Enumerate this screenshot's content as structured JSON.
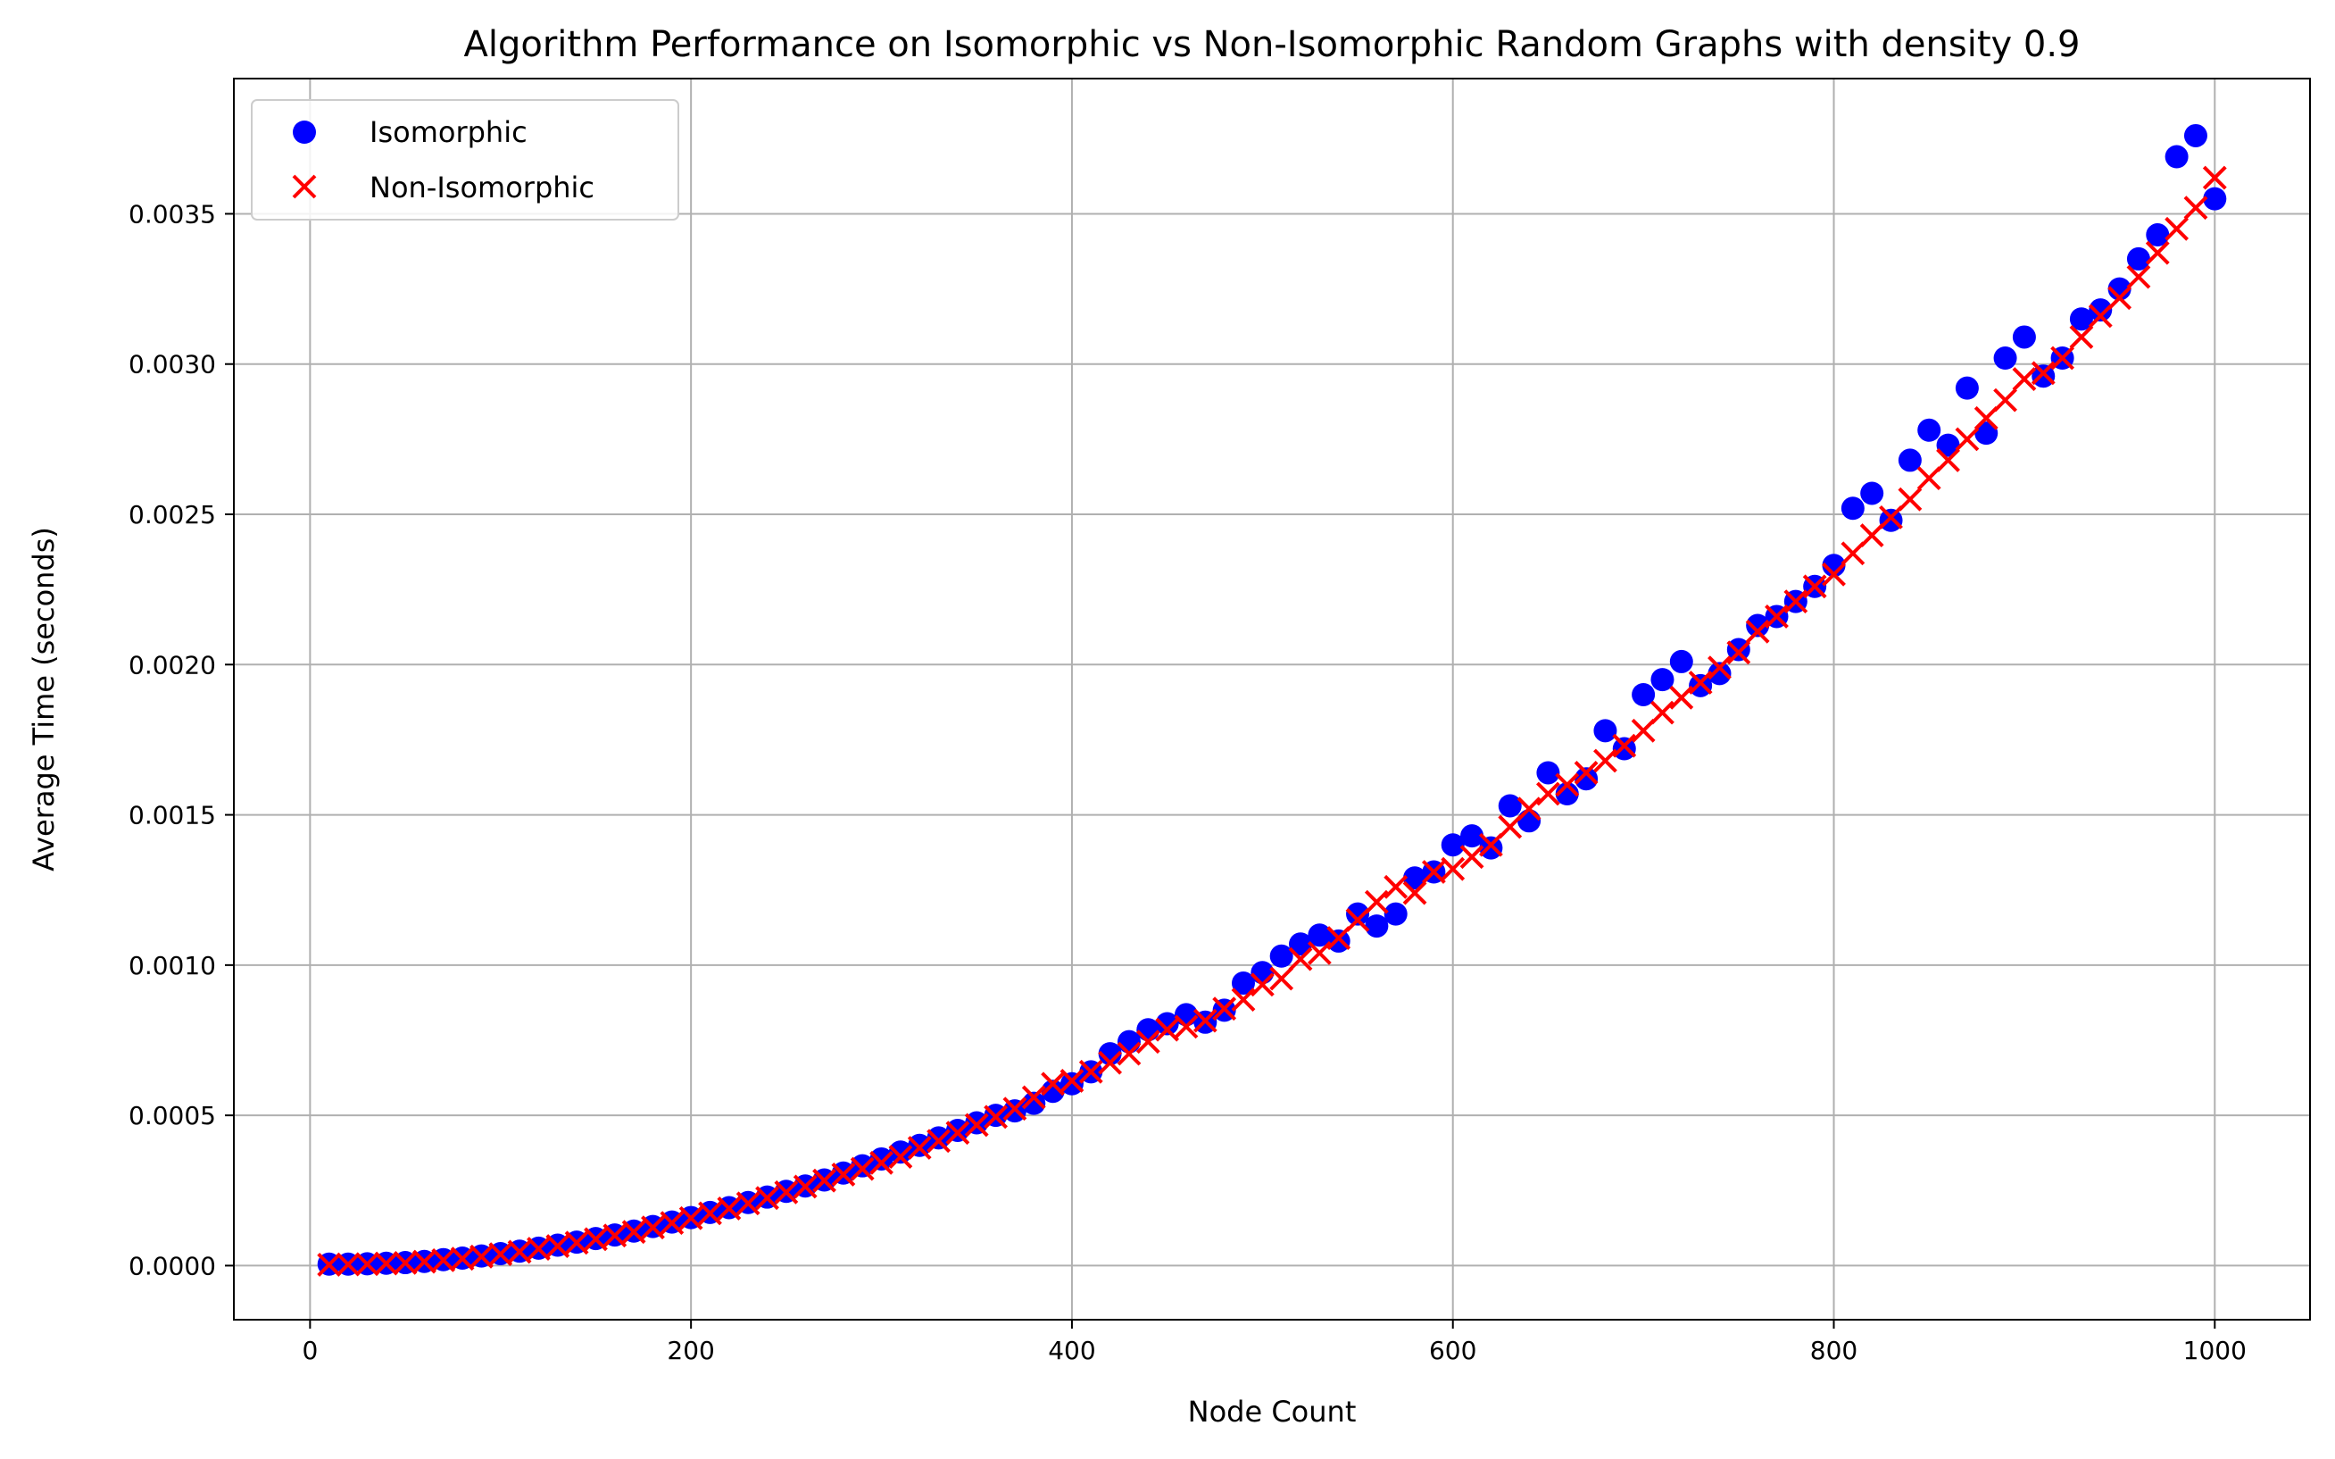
{
  "chart_data": {
    "type": "scatter",
    "title": "Algorithm Performance on Isomorphic vs Non-Isomorphic Random Graphs with density 0.9",
    "xlabel": "Node Count",
    "ylabel": "Average Time (seconds)",
    "xlim": [
      -40,
      1050
    ],
    "ylim": [
      -0.00018,
      0.00395
    ],
    "x_ticks": [
      0,
      200,
      400,
      600,
      800,
      1000
    ],
    "x_tick_labels": [
      "0",
      "200",
      "400",
      "600",
      "800",
      "1000"
    ],
    "y_ticks": [
      0,
      0.0005,
      0.001,
      0.0015,
      0.002,
      0.0025,
      0.003,
      0.0035
    ],
    "y_tick_labels": [
      "0.0000",
      "0.0005",
      "0.0010",
      "0.0015",
      "0.0020",
      "0.0025",
      "0.0030",
      "0.0035"
    ],
    "grid": true,
    "legend_position": "top-left",
    "x": [
      10,
      20,
      30,
      40,
      50,
      60,
      70,
      80,
      90,
      100,
      110,
      120,
      130,
      140,
      150,
      160,
      170,
      180,
      190,
      200,
      210,
      220,
      230,
      240,
      250,
      260,
      270,
      280,
      290,
      300,
      310,
      320,
      330,
      340,
      350,
      360,
      370,
      380,
      390,
      400,
      410,
      420,
      430,
      440,
      450,
      460,
      470,
      480,
      490,
      500,
      510,
      520,
      530,
      540,
      550,
      560,
      570,
      580,
      590,
      600,
      610,
      620,
      630,
      640,
      650,
      660,
      670,
      680,
      690,
      700,
      710,
      720,
      730,
      740,
      750,
      760,
      770,
      780,
      790,
      800,
      810,
      820,
      830,
      840,
      850,
      860,
      870,
      880,
      890,
      900,
      910,
      920,
      930,
      940,
      950,
      960,
      970,
      980,
      990,
      1000
    ],
    "series": [
      {
        "name": "Isomorphic",
        "marker": "circle",
        "color": "#0000ff",
        "values": [
          5e-06,
          5e-06,
          6e-06,
          8e-06,
          1e-05,
          1.4e-05,
          2e-05,
          2.5e-05,
          3.2e-05,
          4e-05,
          4.8e-05,
          5.8e-05,
          6.8e-05,
          7.8e-05,
          9e-05,
          0.000102,
          0.000115,
          0.00013,
          0.000145,
          0.00016,
          0.000177,
          0.000193,
          0.00021,
          0.000228,
          0.000247,
          0.000265,
          0.000285,
          0.000308,
          0.000332,
          0.000355,
          0.000378,
          0.0004,
          0.000425,
          0.00045,
          0.000475,
          0.0005,
          0.000515,
          0.00054,
          0.00058,
          0.000605,
          0.000645,
          0.000705,
          0.000745,
          0.000785,
          0.000805,
          0.000835,
          0.00081,
          0.00085,
          0.00094,
          0.000975,
          0.00103,
          0.00107,
          0.0011,
          0.00108,
          0.00117,
          0.00113,
          0.00117,
          0.00129,
          0.00131,
          0.0014,
          0.00143,
          0.00139,
          0.00153,
          0.00148,
          0.00164,
          0.00157,
          0.00162,
          0.00178,
          0.00172,
          0.0019,
          0.00195,
          0.00201,
          0.00193,
          0.00197,
          0.00205,
          0.00213,
          0.00216,
          0.00221,
          0.00226,
          0.00233,
          0.00252,
          0.00257,
          0.00248,
          0.00268,
          0.00278,
          0.00273,
          0.00292,
          0.00277,
          0.00302,
          0.00309,
          0.00296,
          0.00302,
          0.00315,
          0.00318,
          0.00325,
          0.00335,
          0.00343,
          0.00369,
          0.00376,
          0.00355
        ]
      },
      {
        "name": "Non-Isomorphic",
        "marker": "x",
        "color": "#ff0000",
        "values": [
          3e-06,
          4e-06,
          5e-06,
          7e-06,
          9e-06,
          1.3e-05,
          1.8e-05,
          2.3e-05,
          3e-05,
          3.8e-05,
          4.6e-05,
          5.6e-05,
          6.5e-05,
          7.6e-05,
          8.8e-05,
          0.0001,
          0.000112,
          0.000127,
          0.000142,
          0.000158,
          0.000174,
          0.00019,
          0.000207,
          0.000225,
          0.000244,
          0.000263,
          0.000283,
          0.000303,
          0.000322,
          0.000342,
          0.000362,
          0.000392,
          0.000415,
          0.000442,
          0.000468,
          0.000495,
          0.000522,
          0.00056,
          0.000605,
          0.000615,
          0.000645,
          0.000675,
          0.000705,
          0.000745,
          0.000785,
          0.000795,
          0.000815,
          0.000855,
          0.000885,
          0.000935,
          0.000955,
          0.00102,
          0.00104,
          0.00109,
          0.00115,
          0.00121,
          0.00126,
          0.00124,
          0.00131,
          0.00132,
          0.00136,
          0.0014,
          0.00146,
          0.00152,
          0.00157,
          0.0016,
          0.00164,
          0.00168,
          0.00173,
          0.00178,
          0.00184,
          0.00189,
          0.00194,
          0.00199,
          0.00204,
          0.00211,
          0.00216,
          0.00221,
          0.00226,
          0.0023,
          0.00237,
          0.00243,
          0.00249,
          0.00255,
          0.00262,
          0.00268,
          0.00275,
          0.00282,
          0.00288,
          0.00295,
          0.00297,
          0.00302,
          0.00309,
          0.00316,
          0.00322,
          0.00329,
          0.00337,
          0.00345,
          0.00352,
          0.00362
        ]
      }
    ]
  }
}
